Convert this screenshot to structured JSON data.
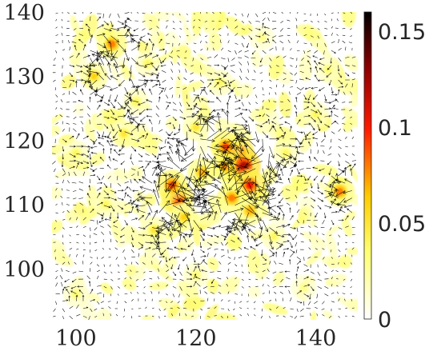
{
  "chart_data": {
    "type": "heatmap",
    "title": "",
    "xlabel": "",
    "ylabel": "",
    "xlim": [
      96,
      147
    ],
    "ylim": [
      92,
      140
    ],
    "x_ticks": [
      "100",
      "120",
      "140"
    ],
    "y_ticks": [
      "100",
      "110",
      "120",
      "130",
      "140"
    ],
    "colorbar": {
      "colormap": "hot (reversed)",
      "range": [
        0,
        0.16
      ],
      "ticks": [
        "0",
        "0.05",
        "0.1",
        "0.15"
      ]
    },
    "overlay": "black quiver arrows (vector field)",
    "grid": false,
    "hotspots": [
      {
        "x": 106,
        "y": 135,
        "value": 0.08
      },
      {
        "x": 103,
        "y": 130,
        "value": 0.06
      },
      {
        "x": 117,
        "y": 111,
        "value": 0.1
      },
      {
        "x": 116,
        "y": 113,
        "value": 0.09
      },
      {
        "x": 121,
        "y": 115,
        "value": 0.07
      },
      {
        "x": 125,
        "y": 116,
        "value": 0.08
      },
      {
        "x": 127,
        "y": 118,
        "value": 0.11
      },
      {
        "x": 128,
        "y": 116,
        "value": 0.12
      },
      {
        "x": 129,
        "y": 113,
        "value": 0.1
      },
      {
        "x": 126,
        "y": 111,
        "value": 0.08
      },
      {
        "x": 125,
        "y": 119,
        "value": 0.09
      },
      {
        "x": 144,
        "y": 112,
        "value": 0.08
      },
      {
        "x": 108,
        "y": 121,
        "value": 0.05
      },
      {
        "x": 113,
        "y": 106,
        "value": 0.05
      },
      {
        "x": 118,
        "y": 108,
        "value": 0.06
      },
      {
        "x": 129,
        "y": 109,
        "value": 0.07
      },
      {
        "x": 110,
        "y": 126,
        "value": 0.04
      },
      {
        "x": 120,
        "y": 122,
        "value": 0.05
      },
      {
        "x": 135,
        "y": 118,
        "value": 0.04
      },
      {
        "x": 140,
        "y": 124,
        "value": 0.04
      },
      {
        "x": 100,
        "y": 118,
        "value": 0.04
      },
      {
        "x": 105,
        "y": 110,
        "value": 0.04
      },
      {
        "x": 112,
        "y": 132,
        "value": 0.04
      },
      {
        "x": 124,
        "y": 129,
        "value": 0.04
      },
      {
        "x": 133,
        "y": 105,
        "value": 0.04
      },
      {
        "x": 100,
        "y": 96,
        "value": 0.035
      },
      {
        "x": 120,
        "y": 99,
        "value": 0.035
      },
      {
        "x": 138,
        "y": 97,
        "value": 0.03
      },
      {
        "x": 142,
        "y": 131,
        "value": 0.035
      },
      {
        "x": 131,
        "y": 136,
        "value": 0.03
      }
    ]
  }
}
